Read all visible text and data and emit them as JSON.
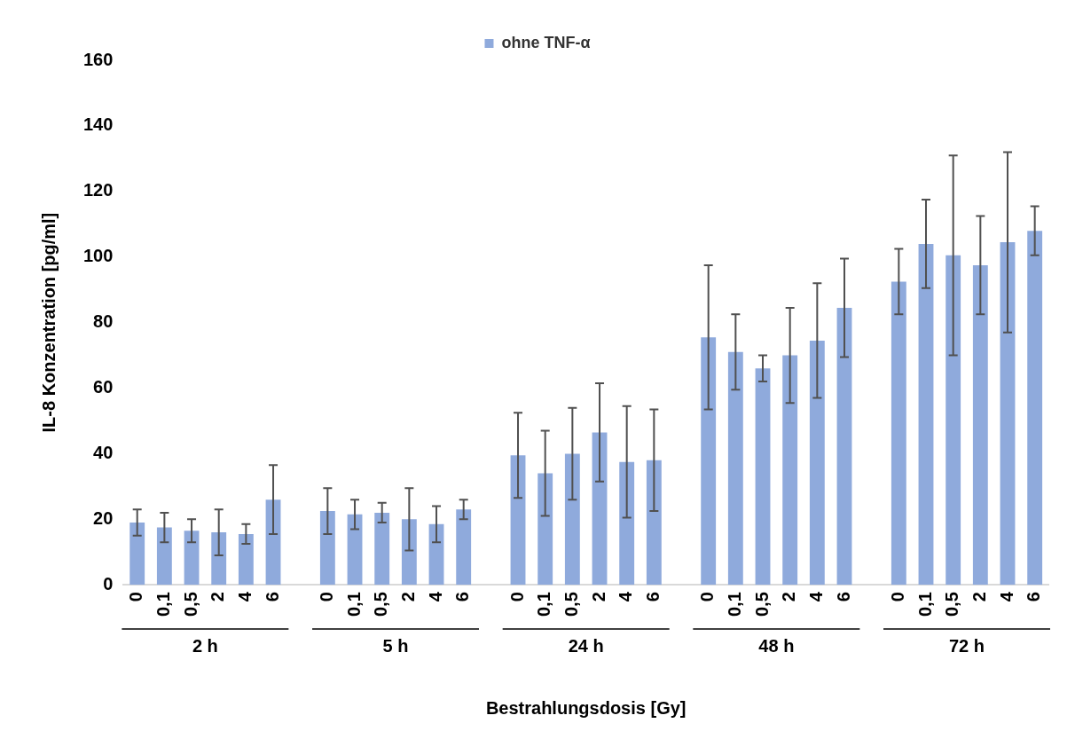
{
  "chart_data": {
    "type": "bar",
    "xlabel": "Bestrahlungsdosis [Gy]",
    "ylabel": "IL-8 Konzentration [pg/ml]",
    "categories": [
      "0",
      "0,1",
      "0,5",
      "2",
      "4",
      "6",
      null,
      "0",
      "0,1",
      "0,5",
      "2",
      "4",
      "6",
      null,
      "0",
      "0,1",
      "0,5",
      "2",
      "4",
      "6",
      null,
      "0",
      "0,1",
      "0,5",
      "2",
      "4",
      "6",
      null,
      "0",
      "0,1",
      "0,5",
      "2",
      "4",
      "6"
    ],
    "series": [
      {
        "name": "ohne TNF-α",
        "color": "#8faadc",
        "values": [
          19,
          17.5,
          16.5,
          16,
          15.5,
          26,
          null,
          22.5,
          21.5,
          22,
          20,
          18.5,
          23,
          null,
          39.5,
          34,
          40,
          46.5,
          37.5,
          38,
          null,
          75.5,
          71,
          66,
          70,
          74.5,
          84.5,
          null,
          92.5,
          104,
          100.5,
          97.5,
          104.5,
          108
        ],
        "errors": [
          4,
          4.5,
          3.5,
          7,
          3,
          10.5,
          null,
          7,
          4.5,
          3,
          9.5,
          5.5,
          3,
          null,
          13,
          13,
          14,
          15,
          17,
          15.5,
          null,
          22,
          11.5,
          4,
          14.5,
          17.5,
          15,
          null,
          10,
          13.5,
          30.5,
          15,
          27.5,
          7.5
        ]
      }
    ],
    "annotations": [
      "2 h",
      "5 h",
      "24 h",
      "48 h",
      "72 h"
    ],
    "ylim": [
      0,
      160
    ],
    "yticks": [
      0,
      20,
      40,
      60,
      80,
      100,
      120,
      140,
      160
    ],
    "grid": false,
    "legend": "top"
  }
}
